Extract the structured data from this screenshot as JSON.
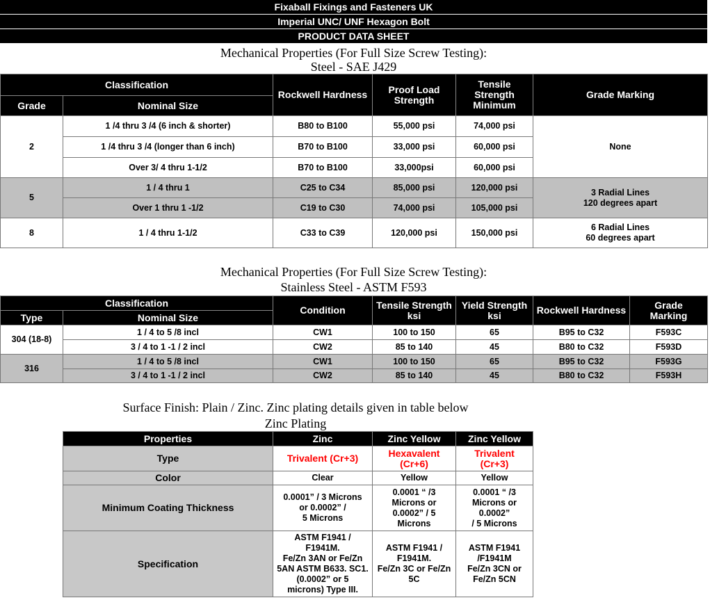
{
  "header": {
    "company": "Fixaball Fixings and Fasteners UK",
    "product": "Imperial UNC/ UNF Hexagon Bolt",
    "sheet": "PRODUCT DATA SHEET"
  },
  "steel": {
    "heading1": "Mechanical Properties (For Full Size Screw Testing):",
    "heading2": "Steel - SAE J429",
    "headers": {
      "classification": "Classification",
      "grade": "Grade",
      "nominal_size": "Nominal Size",
      "rockwell": "Rockwell Hardness",
      "proof": "Proof Load Strength",
      "tensile": "Tensile Strength Minimum",
      "marking": "Grade Marking"
    },
    "rows": [
      {
        "grade": "2",
        "size": "1 /4 thru 3 /4 (6 inch & shorter)",
        "rockwell": "B80 to B100",
        "proof": "55,000 psi",
        "tensile": "74,000 psi",
        "marking": "None"
      },
      {
        "size": "1 /4 thru 3 /4 (longer than 6 inch)",
        "rockwell": "B70 to B100",
        "proof": "33,000 psi",
        "tensile": "60,000 psi"
      },
      {
        "size": "Over  3/ 4 thru 1-1/2",
        "rockwell": "B70 to B100",
        "proof": "33,000psi",
        "tensile": "60,000 psi"
      },
      {
        "grade": "5",
        "size": "1 / 4 thru 1",
        "rockwell": "C25 to C34",
        "proof": "85,000 psi",
        "tensile": "120,000 psi",
        "marking1": "3 Radial Lines",
        "marking2": "120 degrees apart"
      },
      {
        "size": "Over 1 thru 1 -1/2",
        "rockwell": "C19 to C30",
        "proof": "74,000 psi",
        "tensile": "105,000 psi"
      },
      {
        "grade": "8",
        "size": "1 / 4 thru 1-1/2",
        "rockwell": "C33 to C39",
        "proof": "120,000 psi",
        "tensile": "150,000 psi",
        "marking1": "6 Radial Lines",
        "marking2": "60 degrees apart"
      }
    ]
  },
  "stainless": {
    "heading1": "Mechanical Properties (For Full Size Screw Testing):",
    "heading2": "Stainless Steel - ASTM F593",
    "headers": {
      "classification": "Classification",
      "type": "Type",
      "nominal_size": "Nominal Size",
      "condition": "Condition",
      "tensile1": "Tensile Strength",
      "tensile2": "ksi",
      "yield1": "Yield Strength",
      "yield2": "ksi",
      "rockwell": "Rockwell Hardness",
      "marking1": "Grade",
      "marking2": "Marking"
    },
    "rows": [
      {
        "type": "304 (18-8)",
        "size": "1 / 4 to 5 /8  incl",
        "condition": "CW1",
        "tensile": "100 to 150",
        "yield": "65",
        "rockwell": "B95 to C32",
        "marking": "F593C"
      },
      {
        "size": "3 / 4 to 1 -1 / 2 incl",
        "condition": "CW2",
        "tensile": "85 to 140",
        "yield": "45",
        "rockwell": "B80 to C32",
        "marking": "F593D"
      },
      {
        "type": "316",
        "size": "1 / 4 to 5 /8  incl",
        "condition": "CW1",
        "tensile": "100 to 150",
        "yield": "65",
        "rockwell": "B95 to C32",
        "marking": "F593G"
      },
      {
        "size": "3 / 4 to 1 -1 / 2 incl",
        "condition": "CW2",
        "tensile": "85 to 140",
        "yield": "45",
        "rockwell": "B80 to C32",
        "marking": "F593H"
      }
    ]
  },
  "zinc": {
    "surface": "Surface Finish: Plain / Zinc. Zinc plating details given in table below",
    "title": "Zinc Plating",
    "headers": [
      "Properties",
      "Zinc",
      "Zinc Yellow",
      "Zinc Yellow"
    ],
    "type": {
      "label": "Type",
      "values": [
        [
          "Trivalent  (Cr+3)"
        ],
        [
          "Hexavalent",
          "(Cr+6)"
        ],
        [
          "Trivalent",
          "(Cr+3)"
        ]
      ]
    },
    "color": {
      "label": "Color",
      "values": [
        "Clear",
        "Yellow",
        "Yellow"
      ]
    },
    "thickness": {
      "label": "Minimum Coating Thickness",
      "values": [
        [
          "0.0001” / 3 Microns",
          "or 0.0002” /",
          "5 Microns"
        ],
        [
          "0.0001 “ /3",
          "Microns or",
          "0.0002” / 5",
          "Microns"
        ],
        [
          "0.0001 “ /3",
          "Microns or",
          "0.0002”",
          "/ 5 Microns"
        ]
      ]
    },
    "spec": {
      "label": "Specification",
      "values": [
        [
          "ASTM F1941 /",
          "F1941M.",
          "Fe/Zn 3AN or Fe/Zn",
          "5AN ASTM B633. SC1.",
          "(0.0002” or 5",
          "microns) Type III."
        ],
        [
          "ASTM F1941 /",
          "F1941M.",
          "Fe/Zn 3C or Fe/Zn",
          "5C"
        ],
        [
          "ASTM F1941",
          "/F1941M",
          "Fe/Zn 3CN or",
          "Fe/Zn 5CN"
        ]
      ]
    },
    "accent": "#ff0000"
  }
}
